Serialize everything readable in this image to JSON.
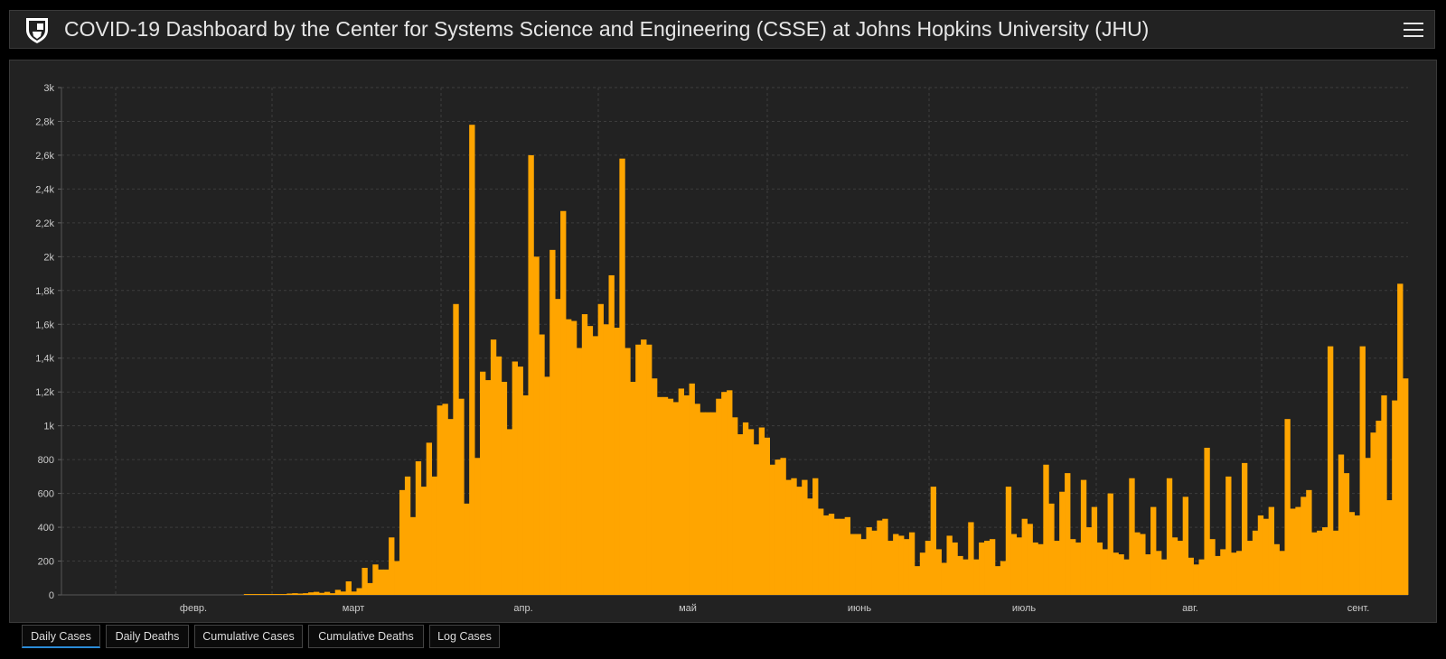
{
  "header": {
    "title": "COVID-19 Dashboard by the Center for Systems Science and Engineering (CSSE) at Johns Hopkins University (JHU)"
  },
  "tabs": [
    {
      "label": "Daily Cases",
      "active": true
    },
    {
      "label": "Daily Deaths",
      "active": false
    },
    {
      "label": "Cumulative Cases",
      "active": false
    },
    {
      "label": "Cumulative Deaths",
      "active": false
    },
    {
      "label": "Log Cases",
      "active": false
    }
  ],
  "colors": {
    "bar": "#ffa500",
    "background": "#222222",
    "grid": "#3d3d3d",
    "axis_text": "#cccccc",
    "active_tab_underline": "#2a8cd8"
  },
  "chart_data": {
    "type": "bar",
    "title": "",
    "xlabel": "",
    "ylabel": "",
    "ylim": [
      0,
      3000
    ],
    "y_ticks": [
      "0",
      "200",
      "400",
      "600",
      "800",
      "1k",
      "1,2k",
      "1,4k",
      "1,6k",
      "1,8k",
      "2k",
      "2,2k",
      "2,4k",
      "2,6k",
      "2,8k",
      "3k"
    ],
    "x_labels": [
      "февр.",
      "март",
      "апр.",
      "май",
      "июнь",
      "июль",
      "авг.",
      "сент."
    ],
    "grid": true,
    "values": [
      0,
      0,
      0,
      0,
      0,
      0,
      0,
      0,
      0,
      0,
      0,
      0,
      0,
      0,
      0,
      0,
      0,
      0,
      0,
      0,
      0,
      0,
      0,
      0,
      0,
      0,
      0,
      0,
      0,
      0,
      0,
      0,
      0,
      0,
      5,
      5,
      5,
      5,
      5,
      5,
      5,
      5,
      8,
      10,
      8,
      10,
      15,
      18,
      12,
      18,
      10,
      30,
      20,
      80,
      20,
      40,
      160,
      70,
      180,
      150,
      150,
      340,
      200,
      620,
      700,
      460,
      790,
      640,
      900,
      700,
      1120,
      1130,
      1040,
      1720,
      1160,
      540,
      2780,
      810,
      1320,
      1270,
      1510,
      1410,
      1260,
      980,
      1380,
      1350,
      1180,
      2600,
      2000,
      1540,
      1290,
      2040,
      1750,
      2270,
      1630,
      1620,
      1460,
      1660,
      1590,
      1530,
      1720,
      1600,
      1890,
      1580,
      2580,
      1460,
      1260,
      1480,
      1510,
      1480,
      1280,
      1170,
      1170,
      1160,
      1140,
      1220,
      1180,
      1250,
      1130,
      1080,
      1080,
      1080,
      1160,
      1200,
      1210,
      1050,
      950,
      1020,
      980,
      890,
      990,
      930,
      770,
      800,
      810,
      680,
      690,
      640,
      680,
      570,
      690,
      510,
      470,
      480,
      450,
      450,
      460,
      360,
      360,
      330,
      400,
      380,
      440,
      450,
      320,
      360,
      350,
      330,
      370,
      170,
      250,
      320,
      640,
      270,
      190,
      350,
      310,
      230,
      210,
      430,
      210,
      310,
      320,
      330,
      170,
      200,
      640,
      360,
      340,
      450,
      420,
      310,
      300,
      770,
      540,
      320,
      610,
      720,
      330,
      310,
      680,
      400,
      520,
      310,
      270,
      600,
      250,
      240,
      210,
      690,
      370,
      360,
      240,
      520,
      260,
      210,
      690,
      340,
      320,
      580,
      220,
      180,
      210,
      870,
      330,
      230,
      270,
      700,
      250,
      260,
      780,
      320,
      380,
      470,
      450,
      520,
      300,
      260,
      1040,
      510,
      520,
      580,
      620,
      370,
      380,
      400,
      1470,
      380,
      830,
      720,
      490,
      470,
      1470,
      810,
      960,
      1030,
      1180,
      560,
      1150,
      1840,
      1280
    ]
  }
}
